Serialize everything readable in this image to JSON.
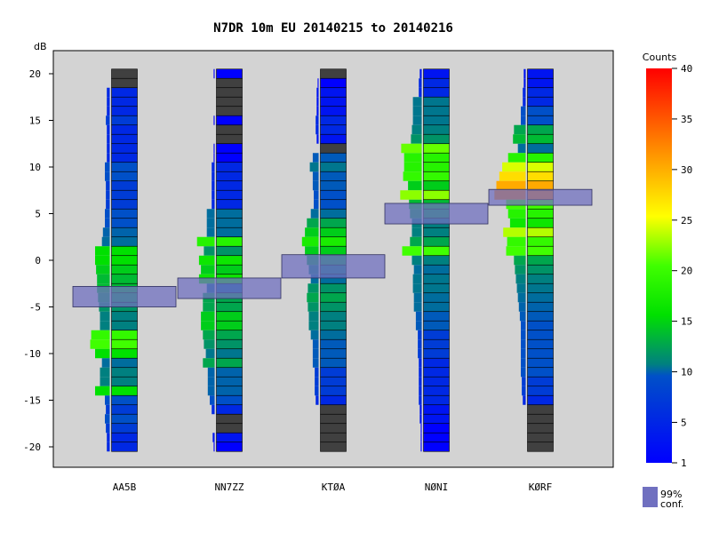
{
  "chart_data": {
    "type": "heatmap",
    "title": "N7DR 10m EU 20140215 to 20140216",
    "ylabel": "dB",
    "ylim": [
      -21,
      23
    ],
    "y_ticks": [
      20,
      15,
      10,
      5,
      0,
      -5,
      -10,
      -15,
      -20
    ],
    "y_tick_labels": [
      "20",
      "15",
      "10",
      "5",
      "0",
      "-5",
      "-10",
      "-15",
      "-20"
    ],
    "categories": [
      "AA5B",
      "NN7ZZ",
      "KTØA",
      "NØNI",
      "KØRF"
    ],
    "colorbar": {
      "label": "Counts",
      "ticks": [
        40,
        35,
        30,
        25,
        20,
        15,
        10,
        5,
        1
      ],
      "tick_labels": [
        "40",
        "35",
        "30",
        "25",
        "20",
        "15",
        "10",
        "5",
        "1"
      ],
      "range": [
        1,
        40
      ]
    },
    "conf_legend": {
      "label_line1": "99%",
      "label_line2": "conf.",
      "color": "#7070c0"
    },
    "grey_color": "#404040",
    "db_levels": [
      20,
      19,
      18,
      17,
      16,
      15,
      14,
      13,
      12,
      11,
      10,
      9,
      8,
      7,
      6,
      5,
      4,
      3,
      2,
      1,
      0,
      -1,
      -2,
      -3,
      -4,
      -5,
      -6,
      -7,
      -8,
      -9,
      -10,
      -11,
      -12,
      -13,
      -14,
      -15,
      -16,
      -17,
      -18,
      -19,
      -20
    ],
    "series": [
      {
        "name": "AA5B",
        "counts": [
          0,
          0,
          3,
          3,
          3,
          4,
          3,
          3,
          3,
          3,
          5,
          5,
          4,
          4,
          4,
          5,
          5,
          7,
          8,
          15,
          15,
          14,
          13,
          13,
          12,
          11,
          10,
          10,
          19,
          20,
          15,
          8,
          10,
          10,
          15,
          5,
          4,
          5,
          4,
          3,
          3
        ],
        "ci": [
          -5,
          -2.8
        ]
      },
      {
        "name": "NN7ZZ",
        "counts": [
          1,
          0,
          0,
          0,
          0,
          1,
          0,
          0,
          1,
          1,
          3,
          3,
          3,
          3,
          3,
          8,
          8,
          8,
          18,
          11,
          16,
          14,
          16,
          8,
          12,
          12,
          14,
          14,
          12,
          11,
          9,
          12,
          7,
          7,
          7,
          5,
          3,
          0,
          0,
          2,
          1
        ],
        "ci": [
          -4.1,
          -1.9
        ]
      },
      {
        "name": "KTØA",
        "counts": [
          0,
          1,
          2,
          2,
          2,
          3,
          3,
          2,
          0,
          6,
          9,
          6,
          6,
          5,
          5,
          8,
          12,
          14,
          17,
          14,
          12,
          10,
          8,
          11,
          12,
          11,
          10,
          10,
          8,
          6,
          6,
          6,
          4,
          4,
          4,
          3,
          0,
          0,
          0,
          0,
          0
        ],
        "ci": [
          -1.9,
          0.6
        ]
      },
      {
        "name": "NØNI",
        "counts": [
          2,
          3,
          3,
          9,
          9,
          9,
          10,
          11,
          21,
          18,
          18,
          19,
          14,
          22,
          13,
          12,
          10,
          10,
          12,
          20,
          10,
          8,
          9,
          9,
          8,
          8,
          6,
          6,
          4,
          4,
          4,
          3,
          3,
          3,
          3,
          3,
          2,
          2,
          1,
          1,
          1
        ],
        "ci": [
          3.9,
          6.1
        ]
      },
      {
        "name": "KØRF",
        "counts": [
          2,
          2,
          3,
          3,
          5,
          5,
          12,
          13,
          8,
          18,
          24,
          27,
          30,
          32,
          20,
          18,
          16,
          23,
          19,
          20,
          12,
          11,
          10,
          9,
          8,
          7,
          6,
          5,
          5,
          5,
          5,
          5,
          5,
          4,
          4,
          3,
          0,
          0,
          0,
          0,
          0
        ],
        "ci": [
          5.9,
          7.6
        ]
      }
    ]
  }
}
